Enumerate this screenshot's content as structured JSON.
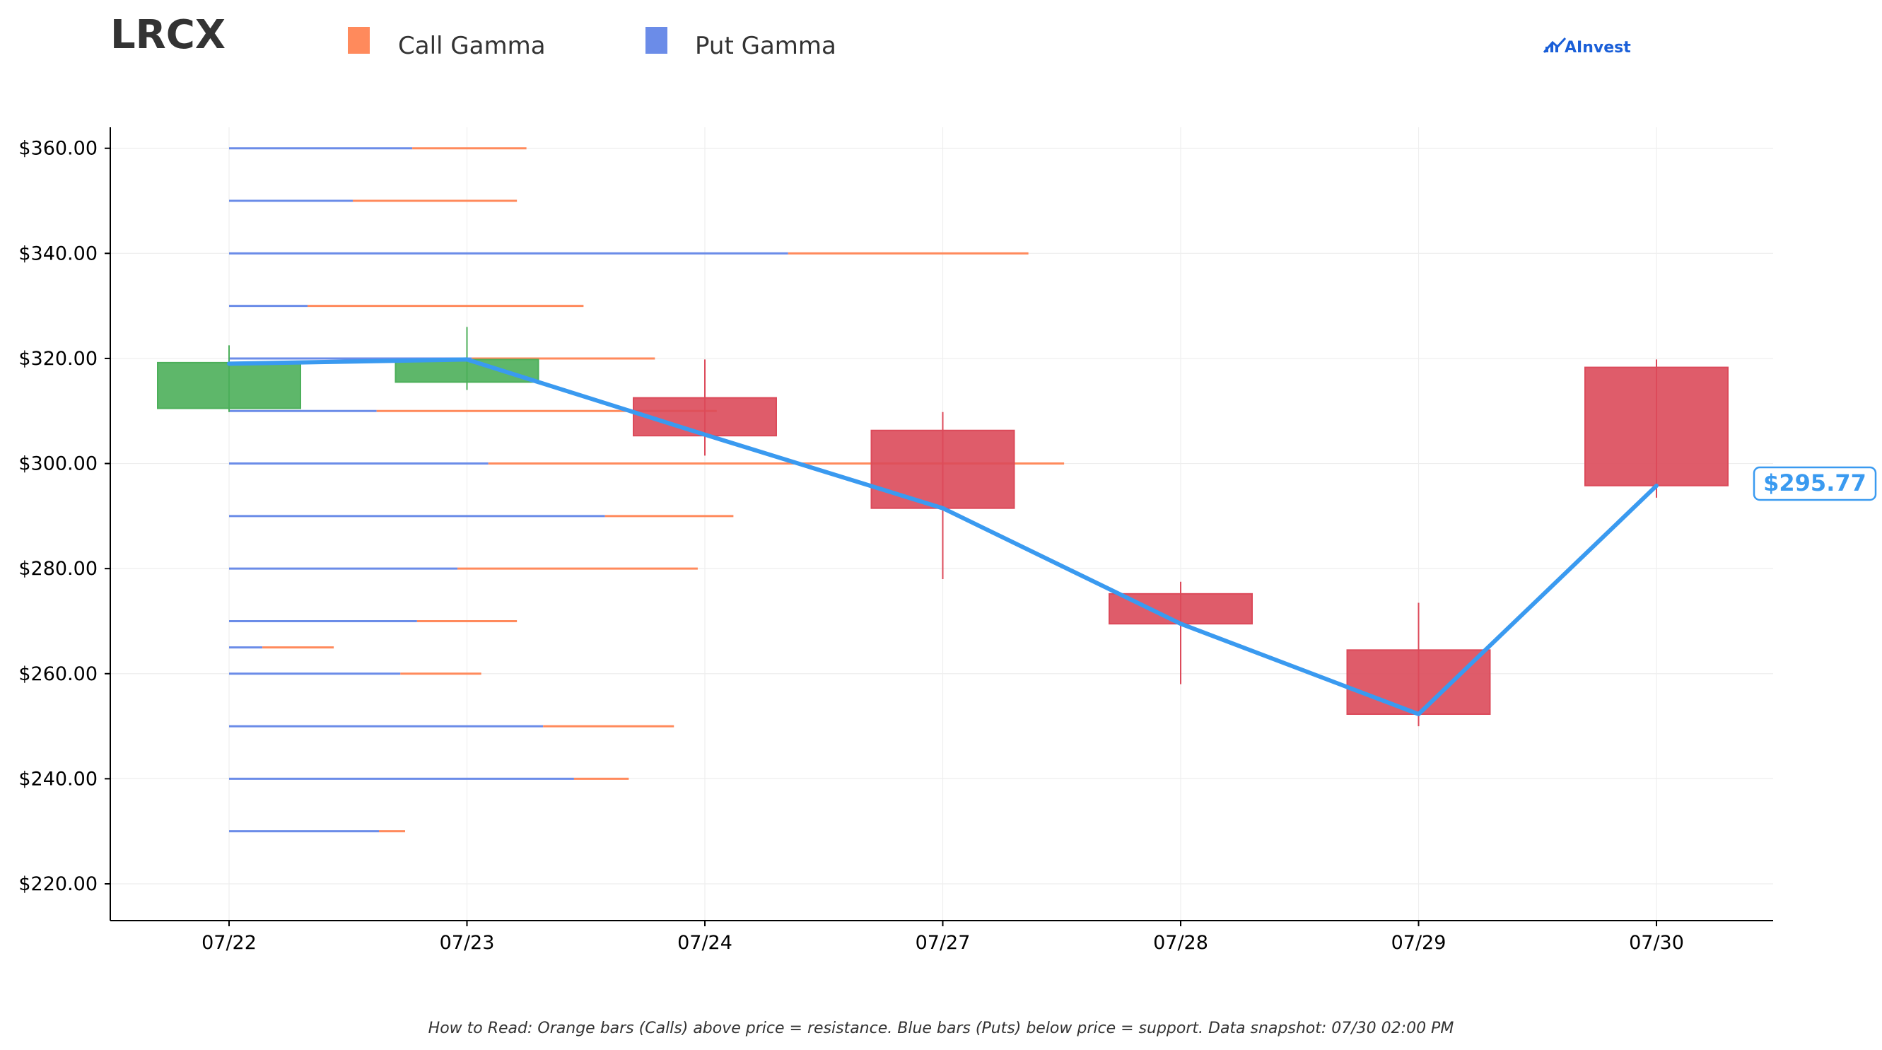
{
  "colors": {
    "call": "#ff8a5c",
    "put": "#6b8ce8",
    "up": "#4caf5a",
    "down": "#dc4a5a",
    "price_line": "#3a9af0",
    "brand": "#1a5fd8"
  },
  "header": {
    "ticker": "LRCX",
    "legend": [
      {
        "label": "Call Gamma",
        "color": "#ff8a5c"
      },
      {
        "label": "Put Gamma",
        "color": "#6b8ce8"
      }
    ],
    "brand": "AInvest"
  },
  "footer": {
    "note": "How to Read: Orange bars (Calls) above price = resistance. Blue bars (Puts) below price = support. Data snapshot: 07/30 02:00 PM"
  },
  "price_tag": "$295.77",
  "chart_data": {
    "type": "candlestick",
    "ylim": [
      213,
      364
    ],
    "grid": true,
    "categories": [
      "07/22",
      "07/23",
      "07/24",
      "07/27",
      "07/28",
      "07/29",
      "07/30"
    ],
    "y_ticks": [
      "$220.00",
      "$240.00",
      "$260.00",
      "$280.00",
      "$300.00",
      "$320.00",
      "$340.00",
      "$360.00"
    ],
    "y_tick_values": [
      220,
      240,
      260,
      280,
      300,
      320,
      340,
      360
    ],
    "candles": [
      {
        "open": 310.5,
        "close": 319.2,
        "high": 322.5,
        "low": 309.8
      },
      {
        "open": 315.5,
        "close": 319.8,
        "high": 326.0,
        "low": 314.0
      },
      {
        "open": 312.5,
        "close": 305.3,
        "high": 319.8,
        "low": 301.5
      },
      {
        "open": 306.3,
        "close": 291.5,
        "high": 309.8,
        "low": 278.0
      },
      {
        "open": 275.2,
        "close": 269.5,
        "high": 277.5,
        "low": 258.0
      },
      {
        "open": 264.5,
        "close": 252.3,
        "high": 273.5,
        "low": 250.0
      },
      {
        "open": 318.3,
        "close": 295.8,
        "high": 319.8,
        "low": 293.5
      }
    ],
    "price_line": [
      319.0,
      319.8,
      305.5,
      291.5,
      269.5,
      252.3,
      295.77
    ],
    "gamma_levels": [
      {
        "strike": 360,
        "put": 0.77,
        "call": 0.48
      },
      {
        "strike": 350,
        "put": 0.52,
        "call": 0.69
      },
      {
        "strike": 340,
        "put": 2.35,
        "call": 1.01
      },
      {
        "strike": 330,
        "put": 0.33,
        "call": 1.16
      },
      {
        "strike": 320,
        "put": 1.02,
        "call": 0.77
      },
      {
        "strike": 310,
        "put": 0.62,
        "call": 1.43
      },
      {
        "strike": 300,
        "put": 1.09,
        "call": 2.42
      },
      {
        "strike": 290,
        "put": 1.58,
        "call": 0.54
      },
      {
        "strike": 280,
        "put": 0.96,
        "call": 1.01
      },
      {
        "strike": 270,
        "put": 0.79,
        "call": 0.42
      },
      {
        "strike": 265,
        "put": 0.14,
        "call": 0.3
      },
      {
        "strike": 260,
        "put": 0.72,
        "call": 0.34
      },
      {
        "strike": 250,
        "put": 1.32,
        "call": 0.55
      },
      {
        "strike": 240,
        "put": 1.45,
        "call": 0.23
      },
      {
        "strike": 230,
        "put": 0.63,
        "call": 0.11
      }
    ]
  }
}
